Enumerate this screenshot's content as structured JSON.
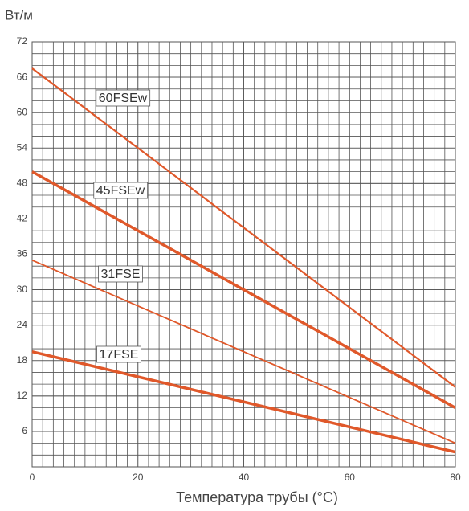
{
  "chart_data": {
    "type": "line",
    "y_label": "Вт/м",
    "x_label": "Температура трубы (°C)",
    "x": [
      0,
      80
    ],
    "series": [
      {
        "name": "60FSEw",
        "color": "#e0582a",
        "values": [
          67.5,
          13.5
        ]
      },
      {
        "name": "45FSEw",
        "color": "#e0582a",
        "values": [
          50,
          10
        ]
      },
      {
        "name": "31FSE",
        "color": "#e0582a",
        "values": [
          35,
          4
        ]
      },
      {
        "name": "17FSE",
        "color": "#e0582a",
        "values": [
          19.5,
          2.5
        ]
      }
    ],
    "xlim": [
      0,
      80
    ],
    "xticks": [
      0,
      20,
      40,
      60,
      80
    ],
    "ylim": [
      0,
      72
    ],
    "yticks": [
      6,
      12,
      18,
      24,
      30,
      36,
      42,
      48,
      54,
      60,
      66,
      72
    ],
    "grid": true
  }
}
